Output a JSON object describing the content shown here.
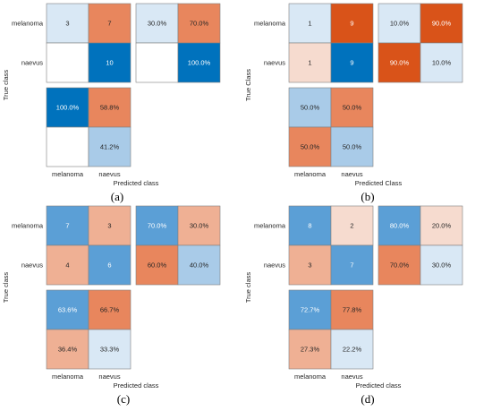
{
  "chart_data": [
    {
      "type": "heatmap",
      "panel_label": "(a)",
      "xlabel": "Predicted class",
      "ylabel": "True class",
      "classes": [
        "melanoma",
        "naevus"
      ],
      "matrix": [
        [
          3,
          7
        ],
        [
          0,
          10
        ]
      ],
      "row_summary": [
        [
          "30.0%",
          "70.0%"
        ],
        [
          "",
          "100.0%"
        ]
      ],
      "column_summary": [
        [
          "100.0%",
          "58.8%"
        ],
        [
          "",
          "41.2%"
        ]
      ]
    },
    {
      "type": "heatmap",
      "panel_label": "(b)",
      "xlabel": "Predicted Class",
      "ylabel": "True Class",
      "classes": [
        "melanoma",
        "naevus"
      ],
      "matrix": [
        [
          1,
          9
        ],
        [
          1,
          9
        ]
      ],
      "row_summary": [
        [
          "10.0%",
          "90.0%"
        ],
        [
          "90.0%",
          "10.0%"
        ]
      ],
      "column_summary": [
        [
          "50.0%",
          "50.0%"
        ],
        [
          "50.0%",
          "50.0%"
        ]
      ]
    },
    {
      "type": "heatmap",
      "panel_label": "(c)",
      "xlabel": "Predicted class",
      "ylabel": "True class",
      "classes": [
        "melanoma",
        "naevus"
      ],
      "matrix": [
        [
          7,
          3
        ],
        [
          4,
          6
        ]
      ],
      "row_summary": [
        [
          "70.0%",
          "30.0%"
        ],
        [
          "60.0%",
          "40.0%"
        ]
      ],
      "column_summary": [
        [
          "63.6%",
          "66.7%"
        ],
        [
          "36.4%",
          "33.3%"
        ]
      ]
    },
    {
      "type": "heatmap",
      "panel_label": "(d)",
      "xlabel": "Predicted class",
      "ylabel": "True class",
      "classes": [
        "melanoma",
        "naevus"
      ],
      "matrix": [
        [
          8,
          2
        ],
        [
          3,
          7
        ]
      ],
      "row_summary": [
        [
          "80.0%",
          "20.0%"
        ],
        [
          "70.0%",
          "30.0%"
        ]
      ],
      "column_summary": [
        [
          "72.7%",
          "77.8%"
        ],
        [
          "27.3%",
          "22.2%"
        ]
      ]
    }
  ],
  "colors": {
    "correct_strong": "#0072bd",
    "correct_mid": "#5b9fd6",
    "correct_light": "#a9cbe8",
    "correct_pale": "#d9e8f5",
    "error_strong": "#d95319",
    "error_mid": "#e8865d",
    "error_light": "#efb094",
    "error_pale": "#f6dbcf",
    "empty": "#ffffff",
    "border": "#7f7f7f",
    "text_dark": "#262626",
    "text_light": "#ffffff"
  }
}
